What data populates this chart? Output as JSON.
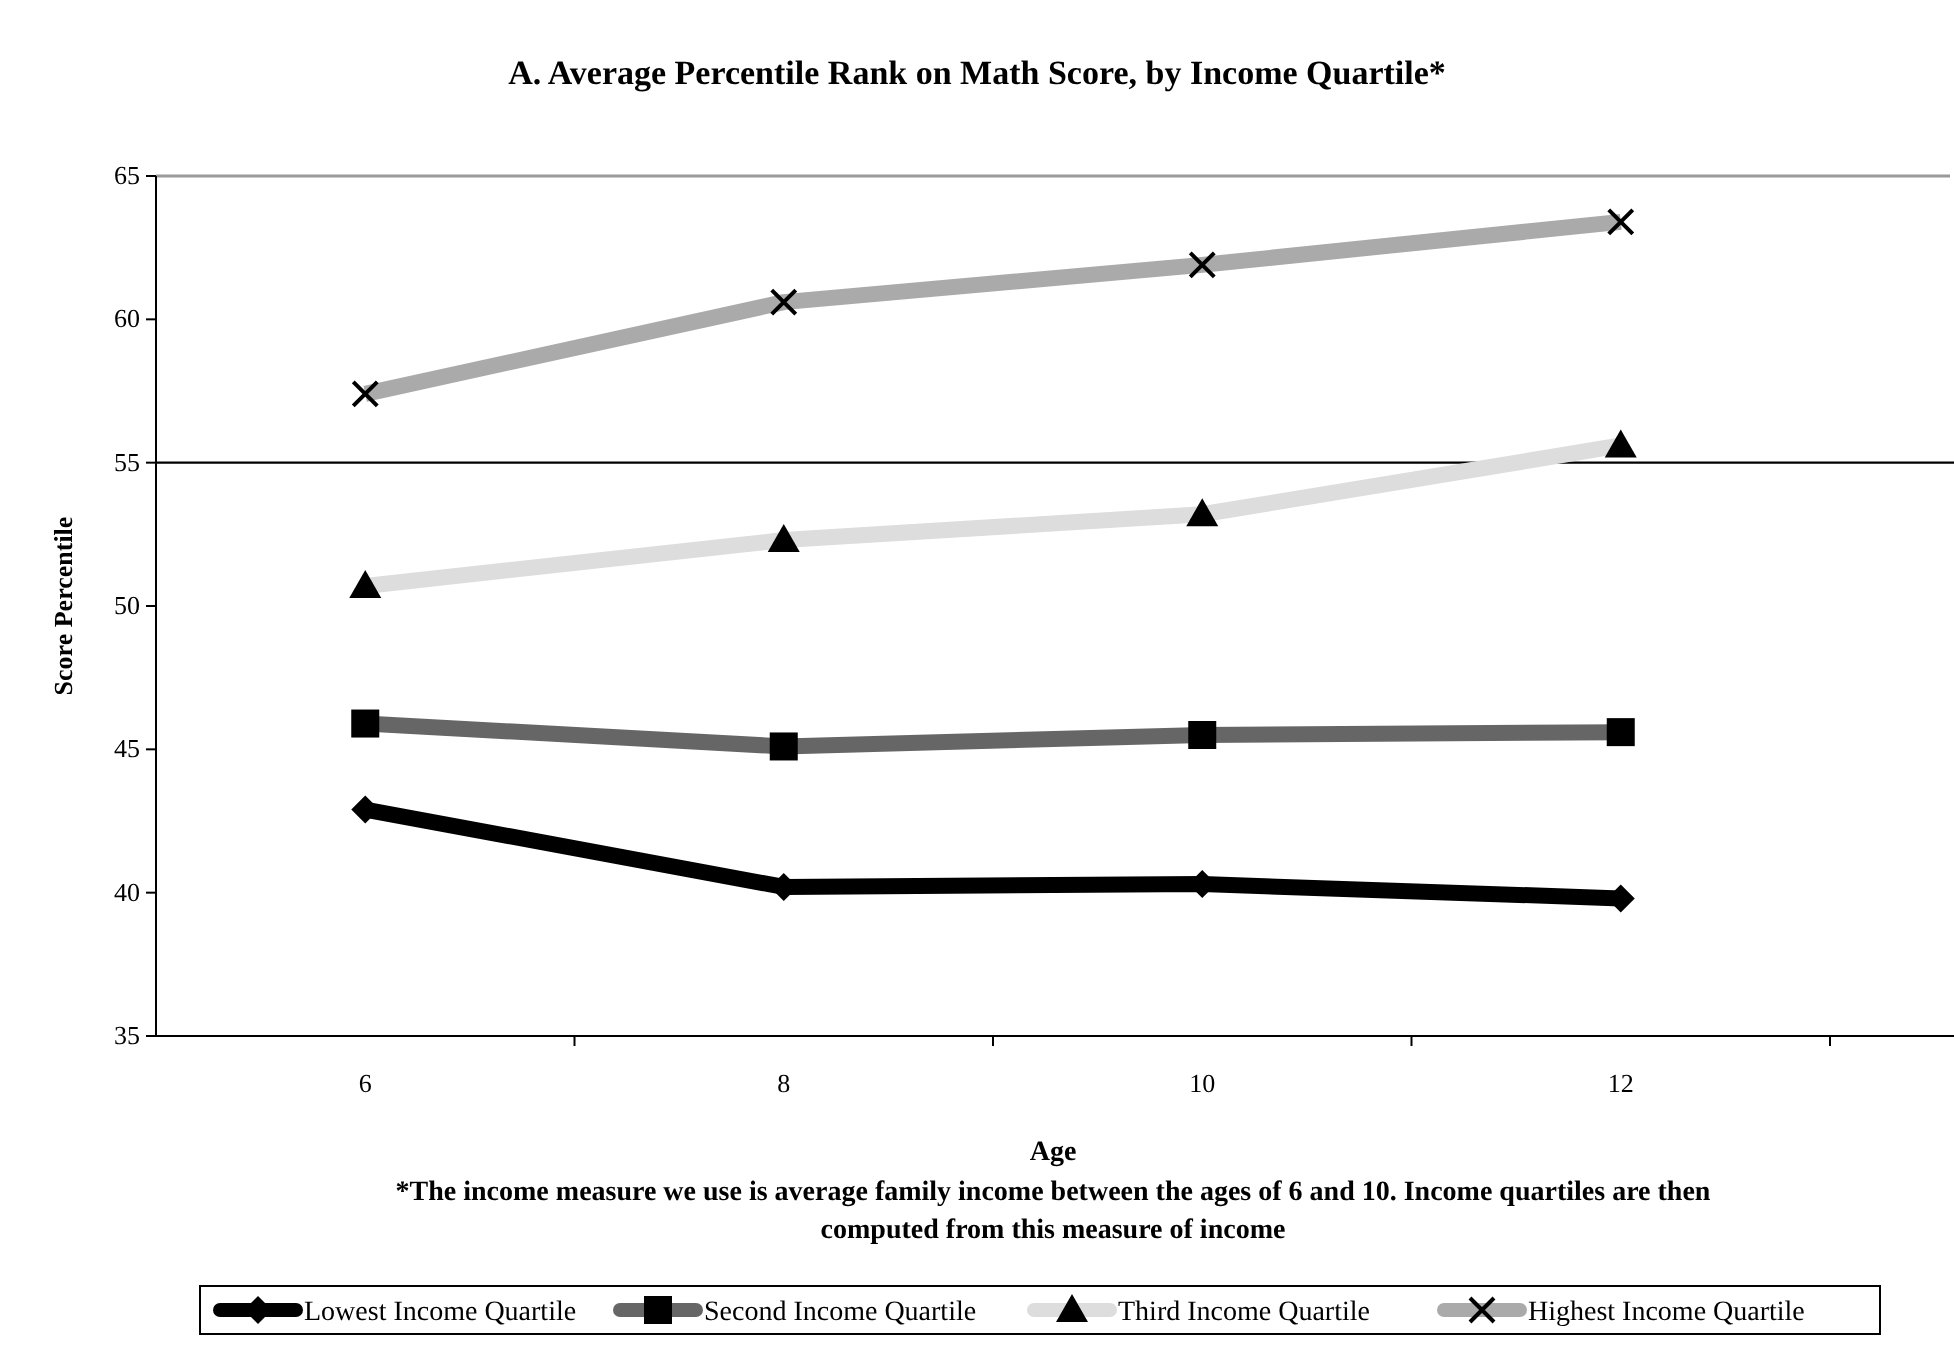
{
  "chart_data": {
    "type": "line",
    "title": "A. Average Percentile Rank on Math Score, by Income Quartile*",
    "xlabel": "Age",
    "ylabel": "Score Percentile",
    "categories": [
      "6",
      "8",
      "10",
      "12"
    ],
    "series": [
      {
        "name": "Lowest Income Quartile",
        "color": "#000000",
        "marker": "diamond",
        "values": [
          42.9,
          40.2,
          40.3,
          39.8
        ]
      },
      {
        "name": "Second Income Quartile",
        "color": "#666666",
        "marker": "square",
        "values": [
          45.9,
          45.1,
          45.5,
          45.6
        ]
      },
      {
        "name": "Third Income Quartile",
        "color": "#dddddd",
        "marker": "triangle",
        "values": [
          50.7,
          52.3,
          53.2,
          55.6
        ]
      },
      {
        "name": "Highest Income Quartile",
        "color": "#aaaaaa",
        "marker": "cross",
        "values": [
          57.4,
          60.6,
          61.9,
          63.4
        ]
      }
    ],
    "ylim": [
      35,
      65
    ],
    "yticks": [
      35,
      40,
      45,
      50,
      55,
      60,
      65
    ],
    "ref_lines": [
      {
        "axis": "y",
        "value": 55,
        "color": "#000000"
      }
    ],
    "annotations": [
      "*The income measure we use is average family income between the ages of 6 and 10. Income quartiles are then computed from this measure of income"
    ],
    "legend": "bottom"
  }
}
